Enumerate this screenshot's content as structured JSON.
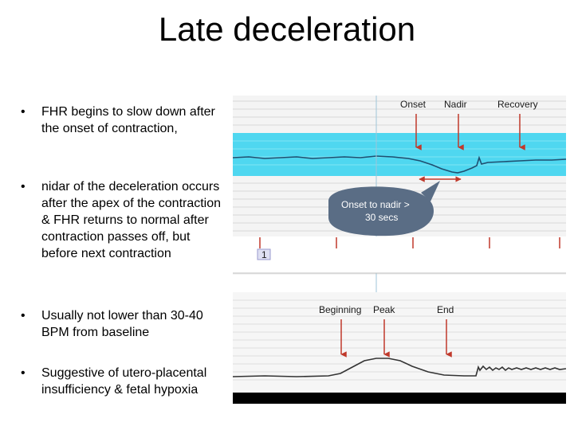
{
  "slide": {
    "title": "Late deceleration",
    "bullets": [
      {
        "marker": "•",
        "text": " FHR begins to slow down after the onset of contraction,"
      },
      {
        "marker": "•",
        "text": " nidar of the deceleration occurs after the apex of the contraction & FHR returns to normal after contraction passes off, but before next contraction"
      },
      {
        "marker": "•",
        "text": "Usually not lower than 30-40 BPM from baseline"
      },
      {
        "marker": "•",
        "text": "Suggestive of utero-placental insufficiency & fetal hypoxia"
      }
    ]
  },
  "figure": {
    "fhr_labels": {
      "onset": "Onset",
      "nadir": "Nadir",
      "recovery": "Recovery"
    },
    "bubble": {
      "line1": "Onset to nadir >",
      "line2": "30 secs"
    },
    "marker_label": "1",
    "uc_labels": {
      "beginning": "Beginning",
      "peak": "Peak",
      "end": "End"
    },
    "colors": {
      "fhr_band": "#4fd7f0",
      "arrow": "#c0392b",
      "bubble": "#5a6d85",
      "trace": "#333333"
    }
  }
}
